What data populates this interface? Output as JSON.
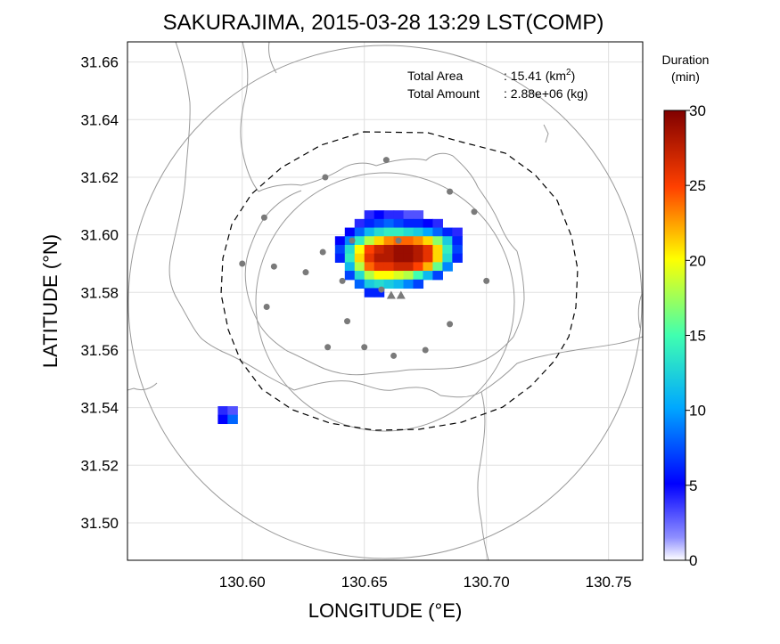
{
  "chart_data": {
    "type": "heatmap",
    "title": "SAKURAJIMA, 2015-03-28 13:29 LST(COMP)",
    "xlabel": "LONGITUDE (°E)",
    "ylabel": "LATITUDE (°N)",
    "xlim": [
      130.553,
      130.764
    ],
    "ylim": [
      31.487,
      31.667
    ],
    "xticks": [
      "130.60",
      "130.65",
      "130.70",
      "130.75"
    ],
    "yticks": [
      "31.50",
      "31.52",
      "31.54",
      "31.56",
      "31.58",
      "31.60",
      "31.62",
      "31.64",
      "31.66"
    ],
    "grid": true,
    "annotations": {
      "total_area_label": "Total Area",
      "total_area_value": ": 15.41 (km",
      "total_area_sup": "2",
      "total_area_close": ")",
      "total_amount_label": "Total Amount",
      "total_amount_value": ": 2.88e+06 (kg)"
    },
    "colorbar": {
      "title_line1": "Duration",
      "title_line2": "(min)",
      "min": 0,
      "max": 30,
      "ticks": [
        "0",
        "5",
        "10",
        "15",
        "20",
        "25",
        "30"
      ]
    },
    "range_circles_km": [
      {
        "center": [
          130.659,
          31.5775
        ],
        "radius_deg_lat": 0.0455
      },
      {
        "center": [
          130.659,
          31.5775
        ],
        "radius_deg_lat": 0.0895
      }
    ],
    "stations": [
      [
        130.659,
        31.626
      ],
      [
        130.634,
        31.62
      ],
      [
        130.685,
        31.615
      ],
      [
        130.609,
        31.606
      ],
      [
        130.695,
        31.608
      ],
      [
        130.645,
        31.598
      ],
      [
        130.664,
        31.598
      ],
      [
        130.633,
        31.594
      ],
      [
        130.6,
        31.59
      ],
      [
        130.613,
        31.589
      ],
      [
        130.626,
        31.587
      ],
      [
        130.641,
        31.584
      ],
      [
        130.7,
        31.584
      ],
      [
        130.657,
        31.581
      ],
      [
        130.61,
        31.575
      ],
      [
        130.643,
        31.57
      ],
      [
        130.685,
        31.569
      ],
      [
        130.635,
        31.561
      ],
      [
        130.65,
        31.561
      ],
      [
        130.675,
        31.56
      ],
      [
        130.662,
        31.558
      ]
    ],
    "vents": [
      [
        130.661,
        31.579
      ],
      [
        130.665,
        31.579
      ]
    ],
    "ash_deposit_cells": [
      {
        "lon": 130.652,
        "lat": 31.607,
        "v": 4
      },
      {
        "lon": 130.656,
        "lat": 31.607,
        "v": 5
      },
      {
        "lon": 130.66,
        "lat": 31.607,
        "v": 4
      },
      {
        "lon": 130.664,
        "lat": 31.607,
        "v": 4
      },
      {
        "lon": 130.668,
        "lat": 31.607,
        "v": 3
      },
      {
        "lon": 130.672,
        "lat": 31.607,
        "v": 3
      },
      {
        "lon": 130.648,
        "lat": 31.604,
        "v": 4
      },
      {
        "lon": 130.652,
        "lat": 31.604,
        "v": 6
      },
      {
        "lon": 130.656,
        "lat": 31.604,
        "v": 7
      },
      {
        "lon": 130.66,
        "lat": 31.604,
        "v": 8
      },
      {
        "lon": 130.664,
        "lat": 31.604,
        "v": 7
      },
      {
        "lon": 130.668,
        "lat": 31.604,
        "v": 6
      },
      {
        "lon": 130.672,
        "lat": 31.604,
        "v": 6
      },
      {
        "lon": 130.676,
        "lat": 31.604,
        "v": 5
      },
      {
        "lon": 130.68,
        "lat": 31.604,
        "v": 4
      },
      {
        "lon": 130.644,
        "lat": 31.601,
        "v": 5
      },
      {
        "lon": 130.648,
        "lat": 31.601,
        "v": 8
      },
      {
        "lon": 130.652,
        "lat": 31.601,
        "v": 11
      },
      {
        "lon": 130.656,
        "lat": 31.601,
        "v": 13
      },
      {
        "lon": 130.66,
        "lat": 31.601,
        "v": 14
      },
      {
        "lon": 130.664,
        "lat": 31.601,
        "v": 14
      },
      {
        "lon": 130.668,
        "lat": 31.601,
        "v": 13
      },
      {
        "lon": 130.672,
        "lat": 31.601,
        "v": 12
      },
      {
        "lon": 130.676,
        "lat": 31.601,
        "v": 10
      },
      {
        "lon": 130.68,
        "lat": 31.601,
        "v": 8
      },
      {
        "lon": 130.684,
        "lat": 31.601,
        "v": 6
      },
      {
        "lon": 130.688,
        "lat": 31.601,
        "v": 4
      },
      {
        "lon": 130.64,
        "lat": 31.598,
        "v": 5
      },
      {
        "lon": 130.644,
        "lat": 31.598,
        "v": 9
      },
      {
        "lon": 130.648,
        "lat": 31.598,
        "v": 14
      },
      {
        "lon": 130.652,
        "lat": 31.598,
        "v": 18
      },
      {
        "lon": 130.656,
        "lat": 31.598,
        "v": 21
      },
      {
        "lon": 130.66,
        "lat": 31.598,
        "v": 23
      },
      {
        "lon": 130.664,
        "lat": 31.598,
        "v": 24
      },
      {
        "lon": 130.668,
        "lat": 31.598,
        "v": 24
      },
      {
        "lon": 130.672,
        "lat": 31.598,
        "v": 23
      },
      {
        "lon": 130.676,
        "lat": 31.598,
        "v": 21
      },
      {
        "lon": 130.68,
        "lat": 31.598,
        "v": 17
      },
      {
        "lon": 130.684,
        "lat": 31.598,
        "v": 12
      },
      {
        "lon": 130.688,
        "lat": 31.598,
        "v": 6
      },
      {
        "lon": 130.64,
        "lat": 31.595,
        "v": 7
      },
      {
        "lon": 130.644,
        "lat": 31.595,
        "v": 13
      },
      {
        "lon": 130.648,
        "lat": 31.595,
        "v": 20
      },
      {
        "lon": 130.652,
        "lat": 31.595,
        "v": 25
      },
      {
        "lon": 130.656,
        "lat": 31.595,
        "v": 27
      },
      {
        "lon": 130.66,
        "lat": 31.595,
        "v": 28
      },
      {
        "lon": 130.664,
        "lat": 31.595,
        "v": 29
      },
      {
        "lon": 130.668,
        "lat": 31.595,
        "v": 29
      },
      {
        "lon": 130.672,
        "lat": 31.595,
        "v": 28
      },
      {
        "lon": 130.676,
        "lat": 31.595,
        "v": 26
      },
      {
        "lon": 130.68,
        "lat": 31.595,
        "v": 21
      },
      {
        "lon": 130.684,
        "lat": 31.595,
        "v": 14
      },
      {
        "lon": 130.688,
        "lat": 31.595,
        "v": 7
      },
      {
        "lon": 130.64,
        "lat": 31.592,
        "v": 6
      },
      {
        "lon": 130.644,
        "lat": 31.592,
        "v": 14
      },
      {
        "lon": 130.648,
        "lat": 31.592,
        "v": 21
      },
      {
        "lon": 130.652,
        "lat": 31.592,
        "v": 26
      },
      {
        "lon": 130.656,
        "lat": 31.592,
        "v": 28
      },
      {
        "lon": 130.66,
        "lat": 31.592,
        "v": 28
      },
      {
        "lon": 130.664,
        "lat": 31.592,
        "v": 29
      },
      {
        "lon": 130.668,
        "lat": 31.592,
        "v": 29
      },
      {
        "lon": 130.672,
        "lat": 31.592,
        "v": 28
      },
      {
        "lon": 130.676,
        "lat": 31.592,
        "v": 26
      },
      {
        "lon": 130.68,
        "lat": 31.592,
        "v": 21
      },
      {
        "lon": 130.684,
        "lat": 31.592,
        "v": 13
      },
      {
        "lon": 130.688,
        "lat": 31.592,
        "v": 6
      },
      {
        "lon": 130.644,
        "lat": 31.589,
        "v": 11
      },
      {
        "lon": 130.648,
        "lat": 31.589,
        "v": 18
      },
      {
        "lon": 130.652,
        "lat": 31.589,
        "v": 24
      },
      {
        "lon": 130.656,
        "lat": 31.589,
        "v": 26
      },
      {
        "lon": 130.66,
        "lat": 31.589,
        "v": 26
      },
      {
        "lon": 130.664,
        "lat": 31.589,
        "v": 27
      },
      {
        "lon": 130.668,
        "lat": 31.589,
        "v": 27
      },
      {
        "lon": 130.672,
        "lat": 31.589,
        "v": 25
      },
      {
        "lon": 130.676,
        "lat": 31.589,
        "v": 22
      },
      {
        "lon": 130.68,
        "lat": 31.589,
        "v": 16
      },
      {
        "lon": 130.684,
        "lat": 31.589,
        "v": 9
      },
      {
        "lon": 130.644,
        "lat": 31.586,
        "v": 7
      },
      {
        "lon": 130.648,
        "lat": 31.586,
        "v": 13
      },
      {
        "lon": 130.652,
        "lat": 31.586,
        "v": 18
      },
      {
        "lon": 130.656,
        "lat": 31.586,
        "v": 20
      },
      {
        "lon": 130.66,
        "lat": 31.586,
        "v": 20
      },
      {
        "lon": 130.664,
        "lat": 31.586,
        "v": 19
      },
      {
        "lon": 130.668,
        "lat": 31.586,
        "v": 18
      },
      {
        "lon": 130.672,
        "lat": 31.586,
        "v": 15
      },
      {
        "lon": 130.676,
        "lat": 31.586,
        "v": 11
      },
      {
        "lon": 130.68,
        "lat": 31.586,
        "v": 7
      },
      {
        "lon": 130.648,
        "lat": 31.583,
        "v": 8
      },
      {
        "lon": 130.652,
        "lat": 31.583,
        "v": 12
      },
      {
        "lon": 130.656,
        "lat": 31.583,
        "v": 13
      },
      {
        "lon": 130.66,
        "lat": 31.583,
        "v": 12
      },
      {
        "lon": 130.664,
        "lat": 31.583,
        "v": 11
      },
      {
        "lon": 130.668,
        "lat": 31.583,
        "v": 9
      },
      {
        "lon": 130.672,
        "lat": 31.583,
        "v": 7
      },
      {
        "lon": 130.652,
        "lat": 31.58,
        "v": 6
      },
      {
        "lon": 130.656,
        "lat": 31.58,
        "v": 6
      },
      {
        "lon": 130.592,
        "lat": 31.539,
        "v": 4
      },
      {
        "lon": 130.596,
        "lat": 31.539,
        "v": 3
      },
      {
        "lon": 130.592,
        "lat": 31.536,
        "v": 5
      },
      {
        "lon": 130.596,
        "lat": 31.536,
        "v": 8
      }
    ]
  }
}
